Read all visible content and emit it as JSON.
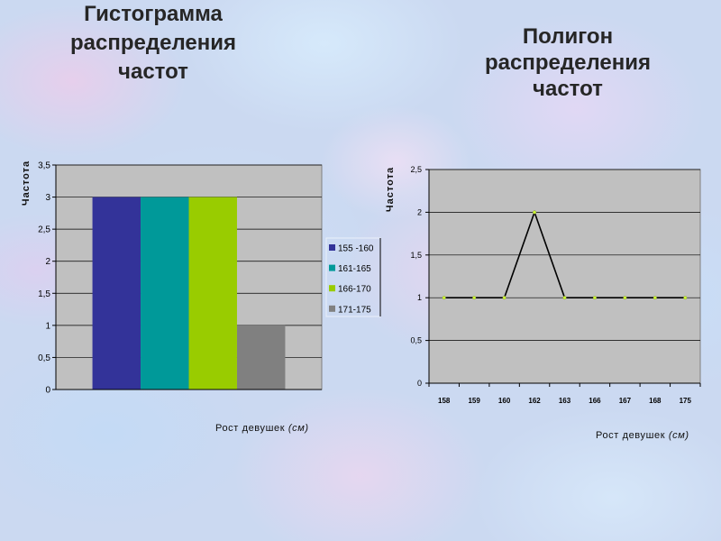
{
  "colors": {
    "plot_background": "#C0C0C0"
  },
  "chart_data": [
    {
      "type": "bar",
      "title": [
        "Гистограмма",
        "распределения",
        "частот"
      ],
      "ylabel": "Частота",
      "xlabel": "Рост девушек",
      "xlabel_unit": "(см)",
      "ylim": [
        0,
        3.5
      ],
      "yticks": [
        0,
        0.5,
        1,
        1.5,
        2,
        2.5,
        3,
        3.5
      ],
      "ytick_labels": [
        "0",
        "0,5",
        "1",
        "1,5",
        "2",
        "2,5",
        "3",
        "3,5"
      ],
      "grid": true,
      "legend": "right",
      "series": [
        {
          "name": "155 -160",
          "value": 3,
          "color": "#333399"
        },
        {
          "name": "161-165",
          "value": 3,
          "color": "#009999"
        },
        {
          "name": "166-170",
          "value": 3,
          "color": "#99CC00"
        },
        {
          "name": "171-175",
          "value": 1,
          "color": "#808080"
        }
      ]
    },
    {
      "type": "line",
      "title": [
        "Полигон",
        "распределения",
        "частот"
      ],
      "ylabel": "Частота",
      "xlabel": "Рост девушек",
      "xlabel_unit": "(см)",
      "ylim": [
        0,
        2.5
      ],
      "yticks": [
        0,
        0.5,
        1,
        1.5,
        2,
        2.5
      ],
      "ytick_labels": [
        "0",
        "0,5",
        "1",
        "1,5",
        "2",
        "2,5"
      ],
      "grid": true,
      "categories": [
        "158",
        "159",
        "160",
        "162",
        "163",
        "166",
        "167",
        "168",
        "175"
      ],
      "values": [
        1,
        1,
        1,
        2,
        1,
        1,
        1,
        1,
        1
      ],
      "line_color": "#000000",
      "marker_color": "#CCFF33"
    }
  ]
}
